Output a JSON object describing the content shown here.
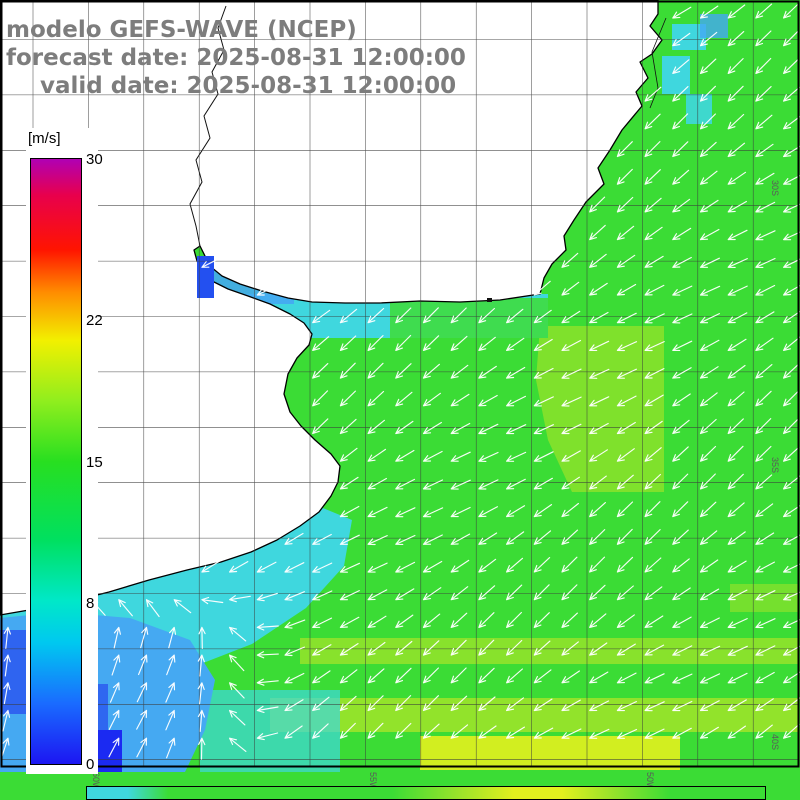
{
  "header": {
    "line1": "modelo GEFS-WAVE (NCEP)",
    "line2": "forecast date: 2025-08-31 12:00:00",
    "line3": "valid date: 2025-08-31 12:00:00"
  },
  "colorbar": {
    "unit": "[m/s]",
    "ticks": [
      30,
      22,
      15,
      8,
      0
    ],
    "min": 0,
    "max": 30,
    "gradient": [
      {
        "c": "#1c16f2",
        "p": 0
      },
      {
        "c": "#1a6bff",
        "p": 10
      },
      {
        "c": "#00c8f0",
        "p": 20
      },
      {
        "c": "#00e8c8",
        "p": 27
      },
      {
        "c": "#00e060",
        "p": 37
      },
      {
        "c": "#28df20",
        "p": 50
      },
      {
        "c": "#90ee1e",
        "p": 60
      },
      {
        "c": "#f2f000",
        "p": 70
      },
      {
        "c": "#ff8c00",
        "p": 78
      },
      {
        "c": "#ff1400",
        "p": 85
      },
      {
        "c": "#e8004c",
        "p": 94
      },
      {
        "c": "#b000b4",
        "p": 100
      }
    ]
  },
  "map": {
    "lat_labels": [
      "30S",
      "35S",
      "40S"
    ],
    "lon_labels": [
      "60W",
      "55W",
      "50W"
    ]
  },
  "palette": {
    "ocean_green": "#3bdc35",
    "yellow_green": "#9ce32a",
    "yellow": "#e3f01e",
    "cyan": "#3fd7de",
    "green_cyan": "#3fdc4f",
    "light_blue": "#45a9f2",
    "deep_blue": "#2c5cf0",
    "dark_blue": "#1b2af2",
    "river_blue": "#2350f0",
    "arrow": "#ffffff",
    "land": "#ffffff",
    "coast": "#000000",
    "grid": "#3c3c3c",
    "title_gray": "#7d7d7d"
  }
}
